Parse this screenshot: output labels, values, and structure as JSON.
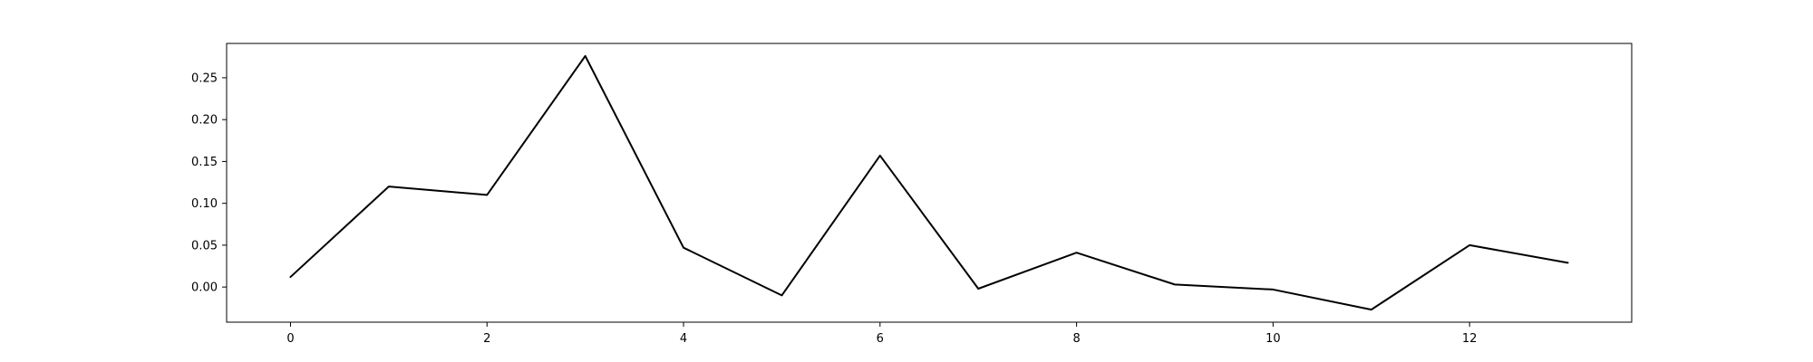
{
  "chart_data": {
    "type": "line",
    "title": "",
    "xlabel": "",
    "ylabel": "",
    "x": [
      0,
      1,
      2,
      3,
      4,
      5,
      6,
      7,
      8,
      9,
      10,
      11,
      12,
      13
    ],
    "series": [
      {
        "values": [
          0.012,
          0.12,
          0.11,
          0.276,
          0.047,
          -0.01,
          0.157,
          -0.002,
          0.041,
          0.003,
          -0.003,
          -0.027,
          0.05,
          0.029
        ]
      }
    ],
    "xlim": [
      -0.65,
      13.65
    ],
    "ylim": [
      -0.042,
      0.291
    ],
    "xticks": [
      0,
      2,
      4,
      6,
      8,
      10,
      12
    ],
    "xtick_labels": [
      "0",
      "2",
      "4",
      "6",
      "8",
      "10",
      "12"
    ],
    "yticks": [
      0.0,
      0.05,
      0.1,
      0.15,
      0.2,
      0.25
    ],
    "ytick_labels": [
      "0.00",
      "0.05",
      "0.10",
      "0.15",
      "0.20",
      "0.25"
    ],
    "grid": false,
    "line_color": "#000000"
  }
}
